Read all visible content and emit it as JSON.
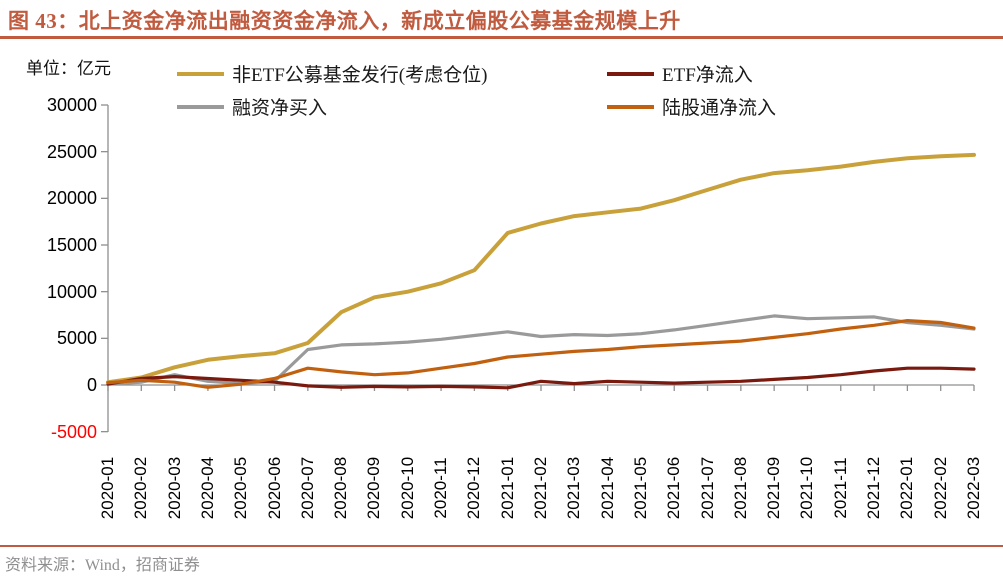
{
  "figure": {
    "title": "图 43：北上资金净流出融资资金净流入，新成立偏股公募基金规模上升",
    "unit_label": "单位：亿元",
    "source": "资料来源：Wind，招商证券"
  },
  "colors": {
    "accent": "#C05B3F",
    "axis": "#8F8F8F",
    "tick_label": "#000000",
    "negative_tick": "#FF0000",
    "source_text": "#8F8F8F"
  },
  "chart_data": {
    "type": "line",
    "title": "北上资金净流出融资资金净流入，新成立偏股公募基金规模上升",
    "unit": "亿元",
    "grid": false,
    "legend_position": "top",
    "ylim": [
      -5000,
      30000
    ],
    "yticks": [
      30000,
      25000,
      20000,
      15000,
      10000,
      5000,
      0,
      -5000
    ],
    "x": [
      "2020-01",
      "2020-02",
      "2020-03",
      "2020-04",
      "2020-05",
      "2020-06",
      "2020-07",
      "2020-08",
      "2020-09",
      "2020-10",
      "2020-11",
      "2020-12",
      "2021-01",
      "2021-02",
      "2021-03",
      "2021-04",
      "2021-05",
      "2021-06",
      "2021-07",
      "2021-08",
      "2021-09",
      "2021-10",
      "2021-11",
      "2021-12",
      "2022-01",
      "2022-02",
      "2022-03"
    ],
    "series": [
      {
        "key": "non-etf-fund-issuance",
        "name": "非ETF公募基金发行(考虑仓位)",
        "color": "#C9A13B",
        "width": 4,
        "values": [
          300,
          800,
          1900,
          2700,
          3100,
          3400,
          4500,
          7800,
          9400,
          10000,
          10900,
          12300,
          16300,
          17300,
          18100,
          18500,
          18900,
          19800,
          20900,
          22000,
          22700,
          23000,
          23400,
          23900,
          24300,
          24500,
          24650
        ]
      },
      {
        "key": "margin-net-buy",
        "name": "融资净买入",
        "color": "#9A9A9A",
        "width": 3.2,
        "values": [
          100,
          300,
          1100,
          400,
          150,
          400,
          3800,
          4300,
          4400,
          4600,
          4900,
          5300,
          5700,
          5200,
          5400,
          5300,
          5500,
          5900,
          6400,
          6900,
          7400,
          7100,
          7200,
          7300,
          6700,
          6400,
          6000
        ]
      },
      {
        "key": "etf-net-inflow",
        "name": "ETF净流入",
        "color": "#7A190D",
        "width": 3.2,
        "values": [
          100,
          700,
          900,
          700,
          500,
          300,
          -100,
          -250,
          -150,
          -200,
          -150,
          -200,
          -300,
          400,
          150,
          400,
          300,
          200,
          300,
          400,
          600,
          800,
          1100,
          1500,
          1800,
          1800,
          1700
        ]
      },
      {
        "key": "northbound-net-inflow",
        "name": "陆股通净流入",
        "color": "#C1600F",
        "width": 3.2,
        "values": [
          250,
          500,
          300,
          -250,
          100,
          700,
          1800,
          1400,
          1100,
          1300,
          1800,
          2300,
          3000,
          3300,
          3600,
          3800,
          4100,
          4300,
          4500,
          4700,
          5100,
          5500,
          6000,
          6400,
          6900,
          6700,
          6100
        ]
      }
    ],
    "legend_columns": [
      [
        0,
        1
      ],
      [
        2,
        3
      ]
    ]
  }
}
